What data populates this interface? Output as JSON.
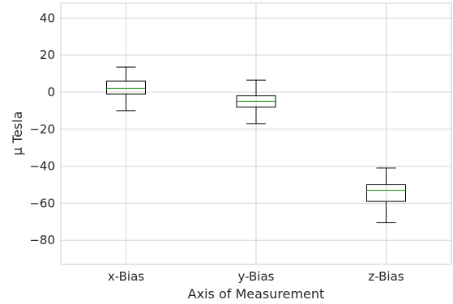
{
  "chart_data": {
    "type": "box",
    "title": "",
    "xlabel": "Axis of Measurement",
    "ylabel": "μ Tesla",
    "ylim": [
      -93,
      48
    ],
    "yticks": [
      40,
      20,
      0,
      -20,
      -40,
      -60,
      -80
    ],
    "ytick_labels": [
      "40",
      "20",
      "0",
      "−20",
      "−40",
      "−60",
      "−80"
    ],
    "grid": true,
    "categories": [
      "x-Bias",
      "y-Bias",
      "z-Bias"
    ],
    "boxes": [
      {
        "label": "x-Bias",
        "whisker_low": -10,
        "q1": -1,
        "median": 2,
        "q3": 6,
        "whisker_high": 13.5
      },
      {
        "label": "y-Bias",
        "whisker_low": -17,
        "q1": -8,
        "median": -5,
        "q3": -2,
        "whisker_high": 6.5
      },
      {
        "label": "z-Bias",
        "whisker_low": -70.5,
        "q1": -59,
        "median": -53,
        "q3": -50,
        "whisker_high": -41
      }
    ],
    "colors": {
      "box": "#000000",
      "median": "#2ca02c",
      "grid": "#d5d5d5",
      "spine": "#cccccc"
    }
  }
}
